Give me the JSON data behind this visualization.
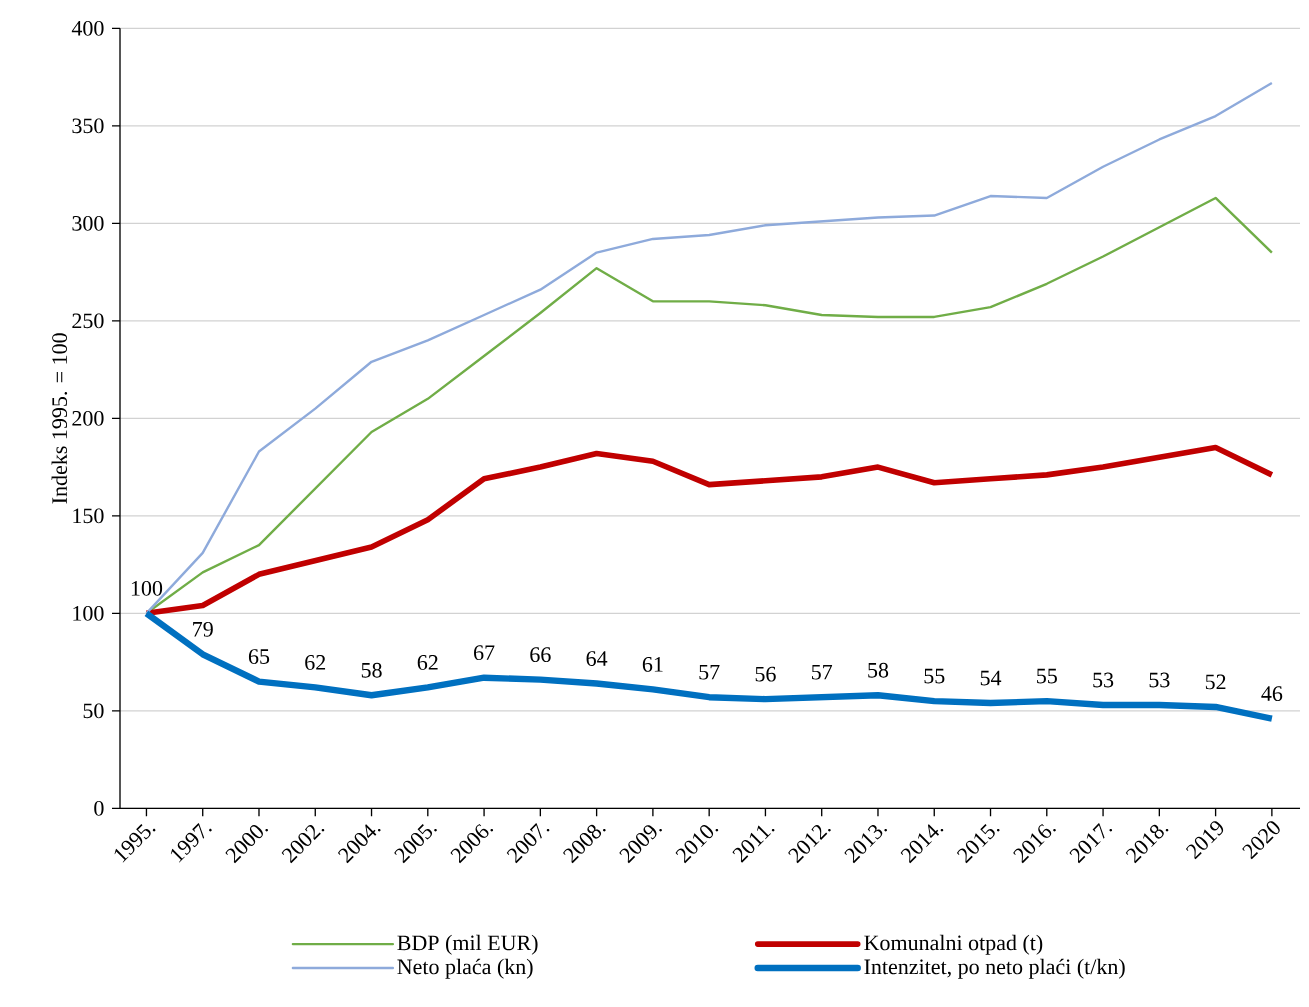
{
  "chart_data": {
    "type": "line",
    "ylabel": "Indeks 1995. = 100",
    "categories": [
      "1995.",
      "1997.",
      "2000.",
      "2002.",
      "2004.",
      "2005.",
      "2006.",
      "2007.",
      "2008.",
      "2009.",
      "2010.",
      "2011.",
      "2012.",
      "2013.",
      "2014.",
      "2015.",
      "2016.",
      "2017.",
      "2018.",
      "2019",
      "2020"
    ],
    "series": [
      {
        "name": "BDP (mil EUR)",
        "color": "#70ad47",
        "values": [
          100,
          121,
          135,
          164,
          193,
          210,
          232,
          254,
          277,
          260,
          260,
          258,
          253,
          252,
          252,
          257,
          269,
          283,
          298,
          313,
          285
        ]
      },
      {
        "name": "Komunalni otpad (t)",
        "color": "#c00000",
        "values": [
          100,
          104,
          120,
          127,
          134,
          148,
          169,
          175,
          182,
          178,
          166,
          168,
          170,
          175,
          167,
          169,
          171,
          175,
          180,
          185,
          171
        ]
      },
      {
        "name": "Neto plaća (kn)",
        "color": "#8eaadb",
        "values": [
          100,
          131,
          183,
          205,
          229,
          240,
          253,
          266,
          285,
          292,
          294,
          299,
          301,
          303,
          304,
          314,
          313,
          329,
          343,
          355,
          372
        ]
      },
      {
        "name": "Intenzitet, po neto plaći (t/kn)",
        "color": "#0070c0",
        "values": [
          100,
          79,
          65,
          62,
          58,
          62,
          67,
          66,
          64,
          61,
          57,
          56,
          57,
          58,
          55,
          54,
          55,
          53,
          53,
          52,
          46
        ],
        "value_labels": [
          "100",
          "79",
          "65",
          "62",
          "58",
          "62",
          "67",
          "66",
          "64",
          "61",
          "57",
          "56",
          "57",
          "58",
          "55",
          "54",
          "55",
          "53",
          "53",
          "52",
          "46"
        ]
      }
    ],
    "ylim": [
      0,
      400
    ],
    "yticks": [
      0,
      50,
      100,
      150,
      200,
      250,
      300,
      350,
      400
    ],
    "grid": "y",
    "legend": "bottom",
    "marker": "none",
    "line_style": "solid"
  }
}
